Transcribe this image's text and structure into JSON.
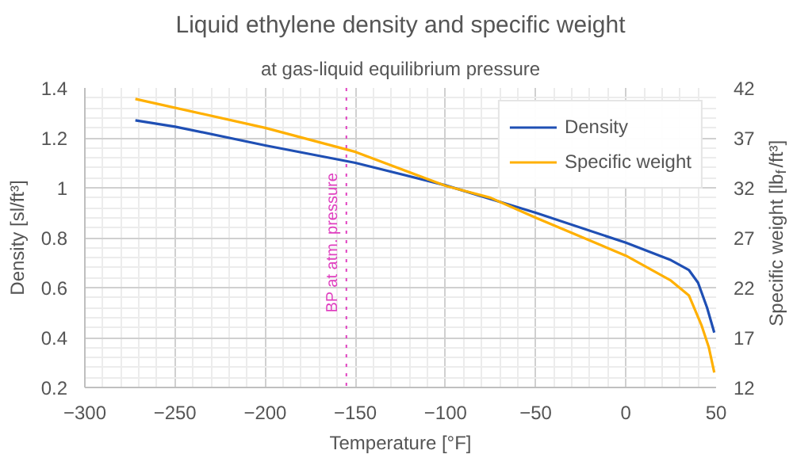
{
  "chart_data": {
    "type": "line",
    "title": "Liquid ethylene density and specific weight",
    "subtitle": "at gas-liquid equilibrium pressure",
    "xlabel": "Temperature [°F]",
    "ylabel": "Density [sl/ft³]",
    "y2label": "Specific weight [lb$_{f}$/ft³]",
    "xlim": [
      -300,
      50
    ],
    "xticks": [
      -300,
      -250,
      -200,
      -150,
      -100,
      -50,
      0,
      50
    ],
    "ylim": [
      0.2,
      1.4
    ],
    "yticks": [
      0.2,
      0.4,
      0.6,
      0.8,
      1,
      1.2,
      1.4
    ],
    "y2lim": [
      12,
      42
    ],
    "y2ticks": [
      12,
      17,
      22,
      27,
      32,
      37,
      42
    ],
    "grid": true,
    "legend": "top right",
    "series": [
      {
        "name": "Density",
        "color": "#1f4fb4",
        "x": [
          -272,
          -250,
          -200,
          -150,
          -100,
          -50,
          0,
          25,
          35,
          40,
          45,
          49
        ],
        "values": [
          1.27,
          1.245,
          1.17,
          1.1,
          1.01,
          0.9,
          0.78,
          0.71,
          0.67,
          0.62,
          0.52,
          0.42
        ]
      },
      {
        "name": "Specific weight",
        "color": "#ffb000",
        "axis": "y2",
        "x": [
          -272,
          -200,
          -150,
          -100,
          -75,
          -50,
          0,
          25,
          35,
          42,
          46,
          49
        ],
        "values": [
          40.9,
          38.0,
          35.6,
          32.2,
          31.0,
          29.0,
          25.2,
          22.7,
          21.2,
          18.2,
          16.0,
          13.5
        ]
      }
    ],
    "ref_lines": [
      {
        "axis": "x",
        "value": -155,
        "label": "BP at atm. pressure",
        "color": "#e040c0",
        "line_style": "dotted"
      }
    ]
  }
}
